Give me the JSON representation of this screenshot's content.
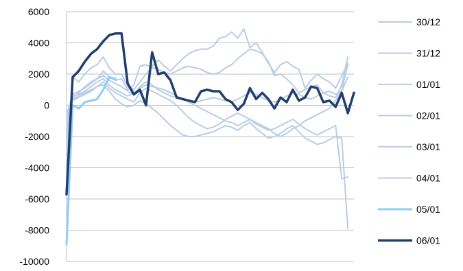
{
  "chart_data": {
    "type": "line",
    "title": "",
    "xlabel": "",
    "ylabel": "",
    "ylim": [
      -10000,
      6000
    ],
    "y_ticks": [
      "6000",
      "4000",
      "2000",
      "0",
      "-2000",
      "-4000",
      "-6000",
      "-8000",
      "-10000"
    ],
    "x_tick_labels": false,
    "grid": "horizontal",
    "legend_position": "right",
    "series": [
      {
        "name": "30/12",
        "color": "#b9cde5",
        "values": [
          -3200,
          1800,
          1500,
          2000,
          2400,
          2600,
          3100,
          2400,
          2000,
          2000,
          1200,
          1000,
          1500,
          2000,
          2500,
          2900,
          2500,
          2200,
          2600,
          3000,
          3300,
          3500,
          3600,
          3600,
          3800,
          4300,
          4400,
          4700,
          4300,
          4900,
          3700,
          4000,
          3400,
          2700,
          2100,
          2600,
          2800,
          2500,
          2300,
          1100,
          1600,
          2000,
          1700,
          1500,
          1100,
          1900,
          2700
        ]
      },
      {
        "name": "31/12",
        "color": "#b9cde5",
        "values": [
          -600,
          700,
          900,
          1100,
          1400,
          1700,
          2200,
          1800,
          1600,
          1700,
          1000,
          1300,
          2500,
          2600,
          2400,
          2300,
          2100,
          2000,
          2200,
          2400,
          2500,
          2400,
          2300,
          2100,
          2000,
          2100,
          2400,
          2600,
          3000,
          3300,
          3600,
          3500,
          3300,
          2800,
          1900,
          2000,
          1700,
          1300,
          800,
          1000,
          1200,
          1300,
          800,
          600,
          500,
          1300,
          3100
        ]
      },
      {
        "name": "01/01",
        "color": "#b9cde5",
        "values": [
          -1500,
          500,
          800,
          1200,
          1500,
          1700,
          1900,
          1600,
          1400,
          1200,
          900,
          700,
          1200,
          1500,
          1300,
          1000,
          800,
          600,
          500,
          400,
          300,
          200,
          300,
          400,
          500,
          400,
          300,
          200,
          400,
          600,
          800,
          700,
          500,
          300,
          200,
          400,
          600,
          800,
          700,
          500,
          400,
          600,
          800,
          900,
          700,
          900,
          1800
        ]
      },
      {
        "name": "02/01",
        "color": "#b9cde5",
        "values": [
          -2000,
          400,
          600,
          800,
          1000,
          1200,
          1500,
          1100,
          800,
          600,
          400,
          200,
          800,
          1100,
          900,
          700,
          500,
          300,
          0,
          -400,
          -800,
          -1100,
          -1300,
          -1500,
          -1400,
          -1200,
          -900,
          -700,
          -500,
          -700,
          -900,
          -1100,
          -1300,
          -1500,
          -1800,
          -2000,
          -1800,
          -1500,
          -1300,
          -1000,
          -800,
          -600,
          -400,
          -200,
          300,
          1000,
          2600
        ]
      },
      {
        "name": "03/01",
        "color": "#b9cde5",
        "values": [
          -2500,
          300,
          500,
          700,
          900,
          1200,
          1300,
          900,
          400,
          100,
          -100,
          0,
          300,
          100,
          -200,
          -500,
          -900,
          -1300,
          -1600,
          -1900,
          -2000,
          -2000,
          -1900,
          -1800,
          -1700,
          -1500,
          -1300,
          -1400,
          -1600,
          -1300,
          -1100,
          -1500,
          -1800,
          -2100,
          -2000,
          -1800,
          -1500,
          -1300,
          -1700,
          -2100,
          -2300,
          -2500,
          -2400,
          -2200,
          -2000,
          -2100,
          -7900
        ]
      },
      {
        "name": "04/01",
        "color": "#b9cde5",
        "values": [
          -1000,
          600,
          700,
          900,
          1200,
          1500,
          1700,
          1300,
          1000,
          800,
          600,
          800,
          1100,
          1300,
          1200,
          1100,
          1000,
          800,
          600,
          400,
          200,
          0,
          -200,
          -400,
          -600,
          -800,
          -1000,
          -1100,
          -1300,
          -1100,
          -900,
          -1200,
          -1400,
          -1600,
          -1500,
          -1300,
          -1100,
          -900,
          -1200,
          -1500,
          -1700,
          -1900,
          -1700,
          -1500,
          -1300,
          -4700,
          -4600
        ]
      },
      {
        "name": "05/01",
        "color": "#8ccef5",
        "values": [
          -8900,
          0,
          -200,
          200,
          300,
          400,
          1000,
          1800,
          1700
        ]
      },
      {
        "name": "06/01",
        "color": "#1f3f6f",
        "values": [
          -5700,
          1800,
          2200,
          2800,
          3300,
          3600,
          4100,
          4500,
          4600,
          4600,
          1400,
          700,
          1000,
          0,
          3400,
          2000,
          2100,
          1600,
          500,
          400,
          300,
          200,
          900,
          1000,
          900,
          900,
          400,
          200,
          -300,
          100,
          1100,
          400,
          800,
          400,
          -200,
          500,
          200,
          1000,
          300,
          500,
          1200,
          1100,
          200,
          300,
          -100,
          800,
          -500,
          800
        ]
      }
    ]
  }
}
